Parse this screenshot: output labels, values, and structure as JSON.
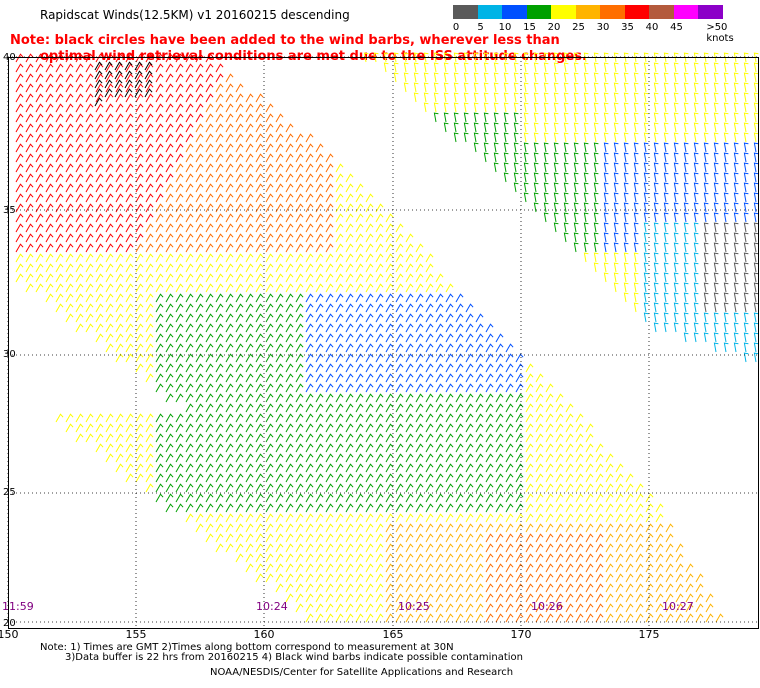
{
  "title": "Rapidscat Winds(12.5KM)  v1  20160215  descending",
  "note": {
    "line1": "Note: black circles have been added to the wind barbs, wherever less than",
    "line2": "optimal wind retrieval conditions are met due to the ISS attitude changes."
  },
  "colorbar": {
    "labels": [
      "0",
      "5",
      "10",
      "15",
      "20",
      "25",
      "30",
      "35",
      "40",
      "45",
      ">50 knots"
    ],
    "colors": [
      "#5a5a5a",
      "#00b4e6",
      "#0050ff",
      "#00a000",
      "#ffff00",
      "#ffb400",
      "#ff6e00",
      "#ff0000",
      "#b45a3c",
      "#ff00ff",
      "#8c00c8"
    ]
  },
  "axes": {
    "lat_labels": [
      "40",
      "35",
      "30",
      "25",
      "20"
    ],
    "lon_labels": [
      "150",
      "155",
      "160",
      "165",
      "170",
      "175"
    ]
  },
  "time_labels": [
    "11:59",
    "10:24",
    "10:25",
    "10:26",
    "10:27"
  ],
  "footer": {
    "line1": "Note: 1) Times are GMT 2)Times along bottom correspond to measurement at 30N",
    "line2": "3)Data buffer is 22 hrs from 20160215 4) Black wind barbs indicate possible contamination",
    "credit": "NOAA/NESDIS/Center for Satellite Applications and Research"
  }
}
